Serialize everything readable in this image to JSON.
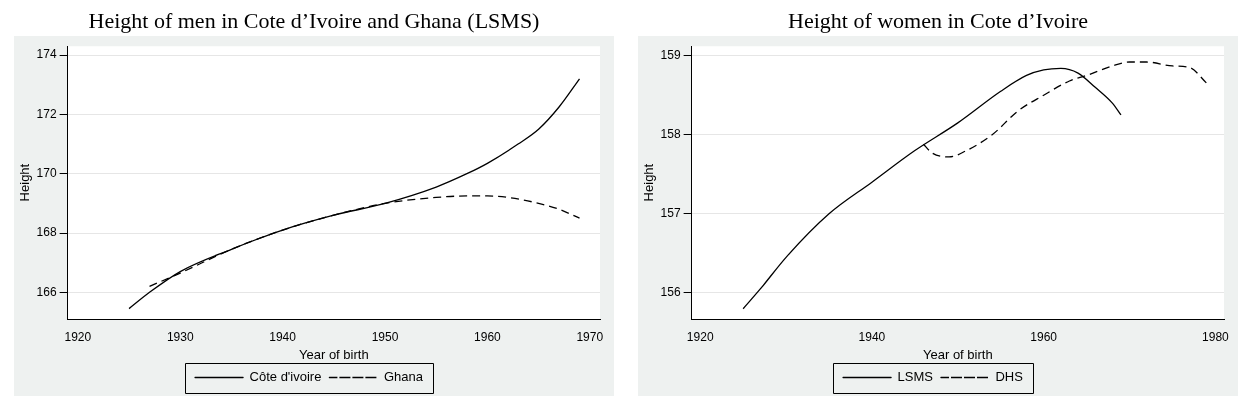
{
  "chart_data": [
    {
      "type": "line",
      "title": "Height of men in Cote d’Ivoire and Ghana (LSMS)",
      "xlabel": "Year of birth",
      "ylabel": "Height",
      "xlim": [
        1919,
        1971
      ],
      "xticks": [
        1920,
        1930,
        1940,
        1950,
        1960,
        1970
      ],
      "ylim": [
        165.1,
        174.3
      ],
      "yticks": [
        166,
        168,
        170,
        172,
        174
      ],
      "grid": "y",
      "legend": "bottom",
      "marker": "none",
      "series": [
        {
          "name": "Côte d'ivoire",
          "color": "#000000",
          "line_style": "solid",
          "x": [
            1925,
            1927,
            1930,
            1935,
            1940,
            1945,
            1950,
            1955,
            1958,
            1960,
            1963,
            1965,
            1967,
            1969
          ],
          "values": [
            165.45,
            166.0,
            166.7,
            167.45,
            168.1,
            168.6,
            169.0,
            169.55,
            170.0,
            170.35,
            171.0,
            171.5,
            172.25,
            173.2
          ]
        },
        {
          "name": "Ghana",
          "color": "#000000",
          "line_style": "dashed",
          "x": [
            1927,
            1930,
            1935,
            1940,
            1945,
            1950,
            1955,
            1958,
            1960,
            1962,
            1965,
            1967,
            1969
          ],
          "values": [
            166.2,
            166.65,
            167.45,
            168.1,
            168.6,
            169.0,
            169.2,
            169.25,
            169.25,
            169.2,
            169.0,
            168.8,
            168.5
          ]
        }
      ]
    },
    {
      "type": "line",
      "title": "Height of women in Cote d’Ivoire",
      "xlabel": "Year of birth",
      "ylabel": "Height",
      "xlim": [
        1919,
        1981
      ],
      "xticks": [
        1920,
        1940,
        1960,
        1980
      ],
      "ylim": [
        155.67,
        159.12
      ],
      "yticks": [
        156,
        157,
        158,
        159
      ],
      "grid": "y",
      "legend": "bottom",
      "marker": "none",
      "series": [
        {
          "name": "LSMS",
          "color": "#000000",
          "line_style": "solid",
          "x": [
            1925,
            1927,
            1930,
            1935,
            1940,
            1945,
            1950,
            1955,
            1958,
            1960,
            1962,
            1964,
            1966,
            1968,
            1969
          ],
          "values": [
            155.8,
            156.05,
            156.45,
            157.0,
            157.4,
            157.8,
            158.15,
            158.55,
            158.75,
            158.82,
            158.84,
            158.78,
            158.6,
            158.4,
            158.25
          ]
        },
        {
          "name": "DHS",
          "color": "#000000",
          "line_style": "dashed",
          "x": [
            1946,
            1947,
            1949,
            1951,
            1954,
            1957,
            1960,
            1963,
            1965,
            1968,
            1970,
            1972,
            1975,
            1977,
            1979
          ],
          "values": [
            157.88,
            157.77,
            157.72,
            157.8,
            158.0,
            158.3,
            158.5,
            158.68,
            158.75,
            158.87,
            158.92,
            158.92,
            158.87,
            158.85,
            158.65
          ]
        }
      ]
    }
  ]
}
